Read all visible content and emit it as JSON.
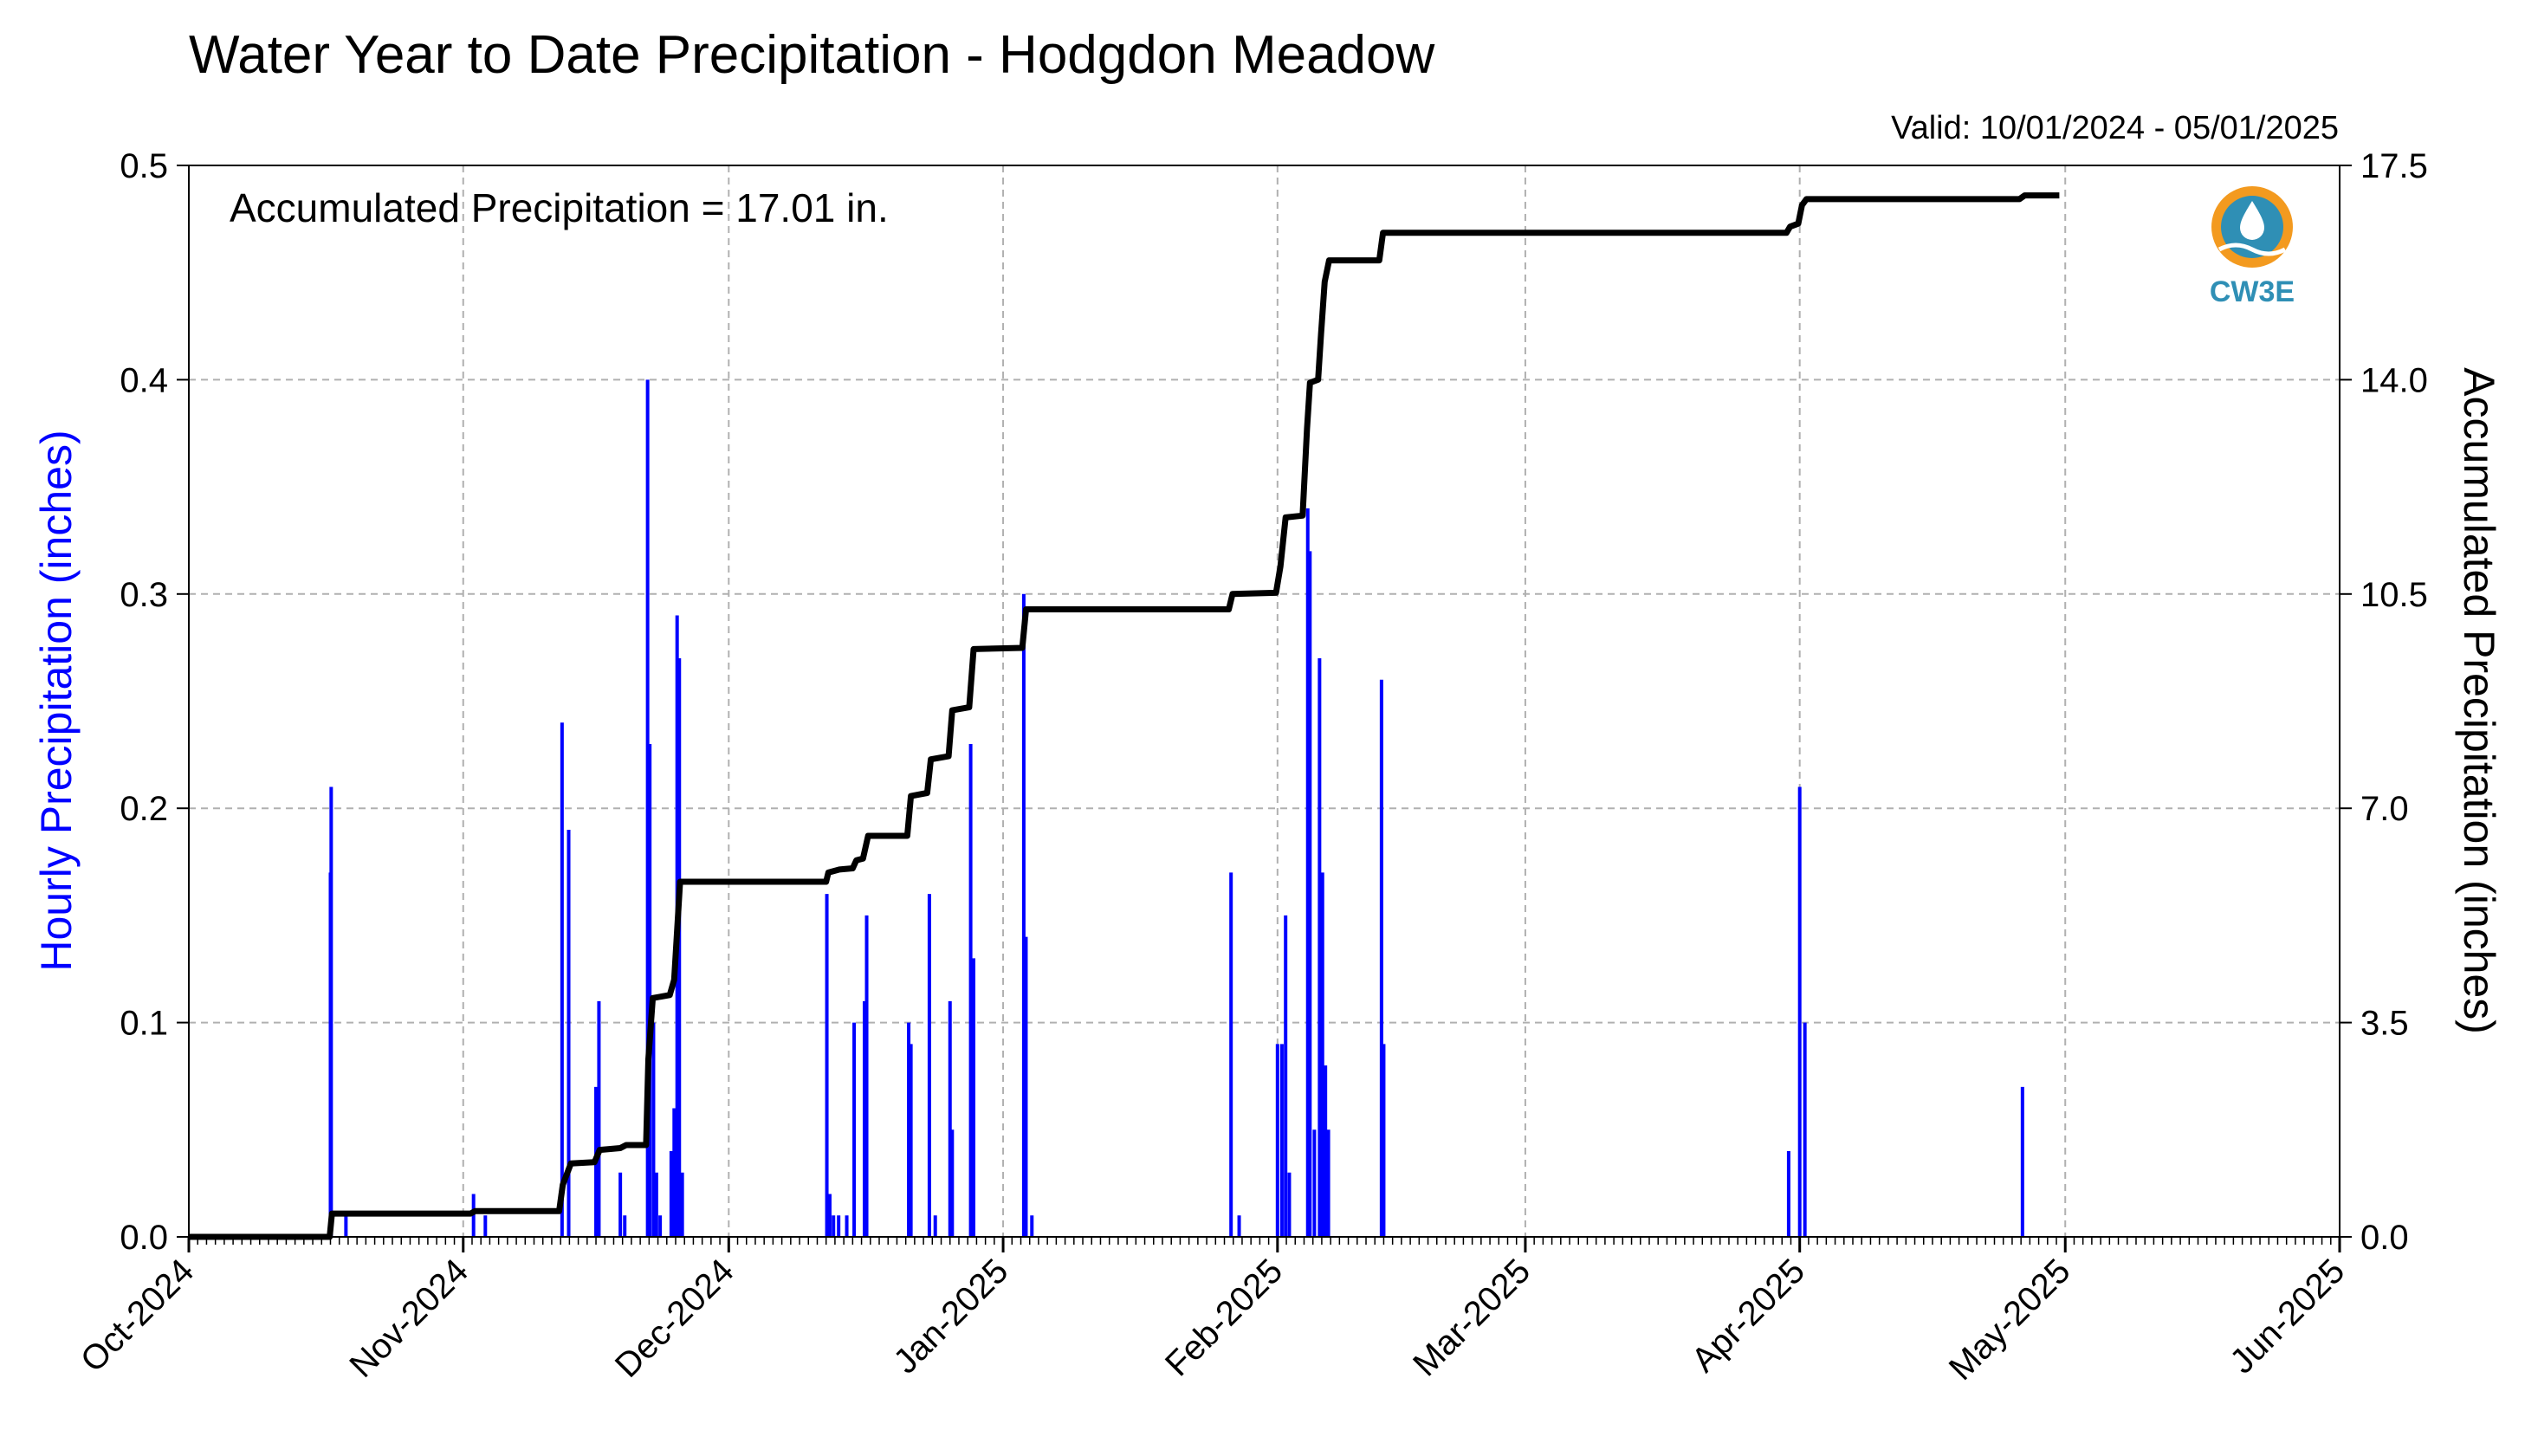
{
  "title": "Water Year to Date Precipitation - Hodgdon Meadow",
  "valid": "Valid: 10/01/2024 - 05/01/2025",
  "annotation": "Accumulated Precipitation = 17.01 in.",
  "logo_text": "CW3E",
  "colors": {
    "hourly": "#0000ff",
    "accum": "#000000",
    "grid": "#b0b0b0",
    "logo_orange": "#f39a1f",
    "logo_blue": "#2f8fb5"
  },
  "chart_data": {
    "type": "bar+line",
    "x_axis": {
      "start": "2024-10-01",
      "end": "2025-06-01",
      "ticks": [
        {
          "date": "2024-10-01",
          "label": "Oct-2024"
        },
        {
          "date": "2024-11-01",
          "label": "Nov-2024"
        },
        {
          "date": "2024-12-01",
          "label": "Dec-2024"
        },
        {
          "date": "2025-01-01",
          "label": "Jan-2025"
        },
        {
          "date": "2025-02-01",
          "label": "Feb-2025"
        },
        {
          "date": "2025-03-01",
          "label": "Mar-2025"
        },
        {
          "date": "2025-04-01",
          "label": "Apr-2025"
        },
        {
          "date": "2025-05-01",
          "label": "May-2025"
        },
        {
          "date": "2025-06-01",
          "label": "Jun-2025"
        }
      ],
      "minor_ticks": "daily"
    },
    "y_left": {
      "label": "Hourly Precipitation (inches)",
      "range": [
        0,
        0.5
      ],
      "ticks": [
        {
          "v": 0.0,
          "label": "0.0"
        },
        {
          "v": 0.1,
          "label": "0.1"
        },
        {
          "v": 0.2,
          "label": "0.2"
        },
        {
          "v": 0.3,
          "label": "0.3"
        },
        {
          "v": 0.4,
          "label": "0.4"
        },
        {
          "v": 0.5,
          "label": "0.5"
        }
      ]
    },
    "y_right": {
      "label": "Accumulated Precipitation (inches)",
      "range": [
        0,
        17.5
      ],
      "ticks": [
        {
          "v": 0.0,
          "label": "0.0"
        },
        {
          "v": 3.5,
          "label": "3.5"
        },
        {
          "v": 7.0,
          "label": "7.0"
        },
        {
          "v": 10.5,
          "label": "10.5"
        },
        {
          "v": 14.0,
          "label": "14.0"
        },
        {
          "v": 17.5,
          "label": "17.5"
        }
      ]
    },
    "grid": true,
    "hourly_series": {
      "name": "Hourly Precipitation",
      "points": [
        {
          "x": "2024-10-17T00:00",
          "y": 0.17
        },
        {
          "x": "2024-10-17T02:00",
          "y": 0.21
        },
        {
          "x": "2024-10-18T18:00",
          "y": 0.01
        },
        {
          "x": "2024-11-02T04:00",
          "y": 0.02
        },
        {
          "x": "2024-11-03T12:00",
          "y": 0.01
        },
        {
          "x": "2024-11-12T04:00",
          "y": 0.24
        },
        {
          "x": "2024-11-12T22:00",
          "y": 0.19
        },
        {
          "x": "2024-11-16T00:00",
          "y": 0.07
        },
        {
          "x": "2024-11-16T08:00",
          "y": 0.11
        },
        {
          "x": "2024-11-18T18:00",
          "y": 0.03
        },
        {
          "x": "2024-11-19T06:00",
          "y": 0.01
        },
        {
          "x": "2024-11-21T20:00",
          "y": 0.4
        },
        {
          "x": "2024-11-22T02:00",
          "y": 0.23
        },
        {
          "x": "2024-11-22T12:00",
          "y": 0.1
        },
        {
          "x": "2024-11-22T20:00",
          "y": 0.03
        },
        {
          "x": "2024-11-23T06:00",
          "y": 0.01
        },
        {
          "x": "2024-11-24T12:00",
          "y": 0.04
        },
        {
          "x": "2024-11-24T20:00",
          "y": 0.06
        },
        {
          "x": "2024-11-25T04:00",
          "y": 0.29
        },
        {
          "x": "2024-11-25T10:00",
          "y": 0.27
        },
        {
          "x": "2024-11-25T18:00",
          "y": 0.03
        },
        {
          "x": "2024-12-12T02:00",
          "y": 0.16
        },
        {
          "x": "2024-12-12T10:00",
          "y": 0.02
        },
        {
          "x": "2024-12-12T20:00",
          "y": 0.01
        },
        {
          "x": "2024-12-13T10:00",
          "y": 0.01
        },
        {
          "x": "2024-12-14T08:00",
          "y": 0.01
        },
        {
          "x": "2024-12-15T04:00",
          "y": 0.1
        },
        {
          "x": "2024-12-16T08:00",
          "y": 0.11
        },
        {
          "x": "2024-12-16T14:00",
          "y": 0.15
        },
        {
          "x": "2024-12-21T08:00",
          "y": 0.1
        },
        {
          "x": "2024-12-21T14:00",
          "y": 0.09
        },
        {
          "x": "2024-12-23T16:00",
          "y": 0.16
        },
        {
          "x": "2024-12-24T08:00",
          "y": 0.01
        },
        {
          "x": "2024-12-26T00:00",
          "y": 0.11
        },
        {
          "x": "2024-12-26T06:00",
          "y": 0.05
        },
        {
          "x": "2024-12-28T08:00",
          "y": 0.23
        },
        {
          "x": "2024-12-28T16:00",
          "y": 0.13
        },
        {
          "x": "2025-01-03T08:00",
          "y": 0.3
        },
        {
          "x": "2025-01-03T14:00",
          "y": 0.14
        },
        {
          "x": "2025-01-04T06:00",
          "y": 0.01
        },
        {
          "x": "2025-01-26T18:00",
          "y": 0.17
        },
        {
          "x": "2025-01-27T16:00",
          "y": 0.01
        },
        {
          "x": "2025-02-01T00:00",
          "y": 0.09
        },
        {
          "x": "2025-02-01T12:00",
          "y": 0.09
        },
        {
          "x": "2025-02-01T22:00",
          "y": 0.15
        },
        {
          "x": "2025-02-02T08:00",
          "y": 0.03
        },
        {
          "x": "2025-02-04T10:00",
          "y": 0.34
        },
        {
          "x": "2025-02-04T16:00",
          "y": 0.32
        },
        {
          "x": "2025-02-05T04:00",
          "y": 0.05
        },
        {
          "x": "2025-02-05T18:00",
          "y": 0.27
        },
        {
          "x": "2025-02-06T02:00",
          "y": 0.17
        },
        {
          "x": "2025-02-06T10:00",
          "y": 0.08
        },
        {
          "x": "2025-02-06T18:00",
          "y": 0.05
        },
        {
          "x": "2025-02-12T18:00",
          "y": 0.26
        },
        {
          "x": "2025-02-13T00:00",
          "y": 0.09
        },
        {
          "x": "2025-03-30T18:00",
          "y": 0.04
        },
        {
          "x": "2025-04-01T00:00",
          "y": 0.21
        },
        {
          "x": "2025-04-01T14:00",
          "y": 0.1
        },
        {
          "x": "2025-04-26T04:00",
          "y": 0.07
        }
      ]
    },
    "accum_series": {
      "name": "Accumulated Precipitation",
      "step": true,
      "points": [
        {
          "x": "2024-10-01T00:00",
          "y": 0.0
        },
        {
          "x": "2024-10-16T22:00",
          "y": 0.0
        },
        {
          "x": "2024-10-17T04:00",
          "y": 0.38
        },
        {
          "x": "2024-11-01T20:00",
          "y": 0.38
        },
        {
          "x": "2024-11-02T08:00",
          "y": 0.42
        },
        {
          "x": "2024-11-11T20:00",
          "y": 0.42
        },
        {
          "x": "2024-11-12T06:00",
          "y": 0.85
        },
        {
          "x": "2024-11-13T04:00",
          "y": 1.2
        },
        {
          "x": "2024-11-15T20:00",
          "y": 1.22
        },
        {
          "x": "2024-11-16T10:00",
          "y": 1.42
        },
        {
          "x": "2024-11-18T18:00",
          "y": 1.45
        },
        {
          "x": "2024-11-19T10:00",
          "y": 1.5
        },
        {
          "x": "2024-11-21T16:00",
          "y": 1.5
        },
        {
          "x": "2024-11-21T22:00",
          "y": 2.9
        },
        {
          "x": "2024-11-22T10:00",
          "y": 3.9
        },
        {
          "x": "2024-11-24T08:00",
          "y": 3.95
        },
        {
          "x": "2024-11-24T20:00",
          "y": 4.2
        },
        {
          "x": "2024-11-25T12:00",
          "y": 5.8
        },
        {
          "x": "2024-12-12T00:00",
          "y": 5.8
        },
        {
          "x": "2024-12-12T06:00",
          "y": 5.95
        },
        {
          "x": "2024-12-13T12:00",
          "y": 6.0
        },
        {
          "x": "2024-12-15T00:00",
          "y": 6.02
        },
        {
          "x": "2024-12-15T10:00",
          "y": 6.15
        },
        {
          "x": "2024-12-16T04:00",
          "y": 6.18
        },
        {
          "x": "2024-12-16T18:00",
          "y": 6.55
        },
        {
          "x": "2024-12-21T04:00",
          "y": 6.55
        },
        {
          "x": "2024-12-21T14:00",
          "y": 7.2
        },
        {
          "x": "2024-12-23T10:00",
          "y": 7.25
        },
        {
          "x": "2024-12-23T20:00",
          "y": 7.8
        },
        {
          "x": "2024-12-25T20:00",
          "y": 7.85
        },
        {
          "x": "2024-12-26T06:00",
          "y": 8.6
        },
        {
          "x": "2024-12-28T04:00",
          "y": 8.65
        },
        {
          "x": "2024-12-28T16:00",
          "y": 9.6
        },
        {
          "x": "2025-01-03T04:00",
          "y": 9.62
        },
        {
          "x": "2025-01-03T14:00",
          "y": 10.25
        },
        {
          "x": "2025-01-26T12:00",
          "y": 10.25
        },
        {
          "x": "2025-01-26T22:00",
          "y": 10.5
        },
        {
          "x": "2025-01-31T20:00",
          "y": 10.52
        },
        {
          "x": "2025-02-01T08:00",
          "y": 10.95
        },
        {
          "x": "2025-02-01T22:00",
          "y": 11.75
        },
        {
          "x": "2025-02-03T20:00",
          "y": 11.78
        },
        {
          "x": "2025-02-04T08:00",
          "y": 13.2
        },
        {
          "x": "2025-02-04T16:00",
          "y": 13.95
        },
        {
          "x": "2025-02-05T14:00",
          "y": 14.0
        },
        {
          "x": "2025-02-05T22:00",
          "y": 14.75
        },
        {
          "x": "2025-02-06T08:00",
          "y": 15.6
        },
        {
          "x": "2025-02-06T20:00",
          "y": 15.95
        },
        {
          "x": "2025-02-12T12:00",
          "y": 15.95
        },
        {
          "x": "2025-02-12T22:00",
          "y": 16.4
        },
        {
          "x": "2025-03-30T12:00",
          "y": 16.4
        },
        {
          "x": "2025-03-30T22:00",
          "y": 16.5
        },
        {
          "x": "2025-03-31T20:00",
          "y": 16.55
        },
        {
          "x": "2025-04-01T06:00",
          "y": 16.85
        },
        {
          "x": "2025-04-01T18:00",
          "y": 16.95
        },
        {
          "x": "2025-04-25T20:00",
          "y": 16.95
        },
        {
          "x": "2025-04-26T10:00",
          "y": 17.01
        },
        {
          "x": "2025-04-30T08:00",
          "y": 17.01
        }
      ]
    }
  }
}
